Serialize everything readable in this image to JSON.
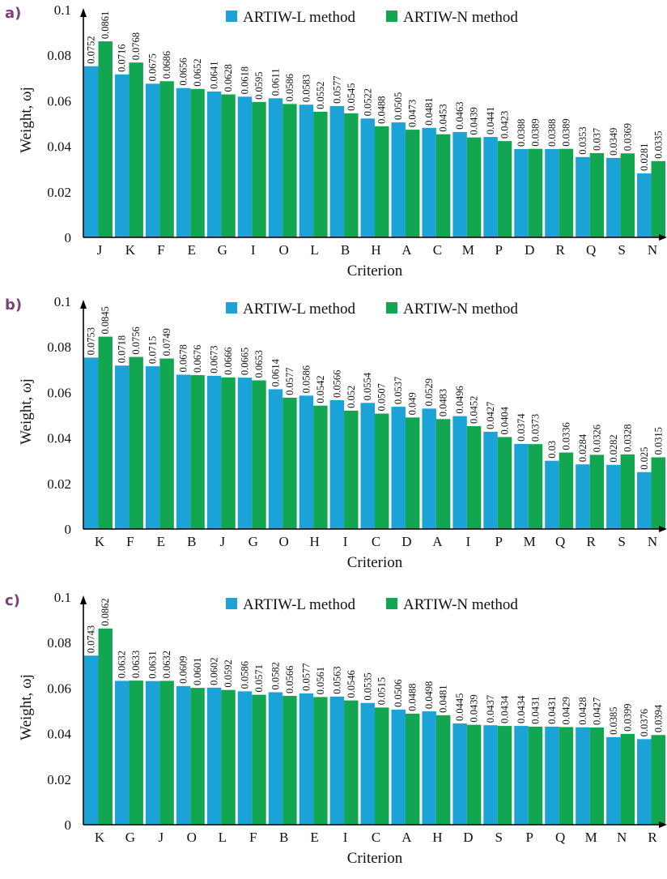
{
  "colors": {
    "series_l": "#1ba3d8",
    "series_n": "#12a650",
    "axis": "#000000",
    "panel_label": "#7b3f7a"
  },
  "chart_data": [
    {
      "type": "bar",
      "panel_label": "a)",
      "ylabel": "Weight, ωj",
      "xlabel": "Criterion",
      "ylim": [
        0,
        0.1
      ],
      "yticks": [
        "0",
        "0.02",
        "0.04",
        "0.06",
        "0.08",
        "0.1"
      ],
      "legend_position": "top-center",
      "categories": [
        "J",
        "K",
        "F",
        "E",
        "G",
        "I",
        "O",
        "L",
        "B",
        "H",
        "A",
        "C",
        "M",
        "P",
        "D",
        "R",
        "Q",
        "S",
        "N"
      ],
      "series": [
        {
          "name": "ARTIW-L method",
          "values": [
            0.0752,
            0.0716,
            0.0675,
            0.0656,
            0.0641,
            0.0618,
            0.0611,
            0.0583,
            0.0577,
            0.0522,
            0.0505,
            0.0481,
            0.0463,
            0.0441,
            0.0388,
            0.0388,
            0.0353,
            0.0349,
            0.0281
          ],
          "labels": [
            "0.0752",
            "0.0716",
            "0.0675",
            "0.0656",
            "0.0641",
            "0.0618",
            "0.0611",
            "0.0583",
            "0.0577",
            "0.0522",
            "0.0505",
            "0.0481",
            "0.0463",
            "0.0441",
            "0.0388",
            "0.0388",
            "0.0353",
            "0.0349",
            "0.0281"
          ]
        },
        {
          "name": "ARTIW-N method",
          "values": [
            0.0861,
            0.0768,
            0.0686,
            0.0652,
            0.0628,
            0.0595,
            0.0586,
            0.0552,
            0.0545,
            0.0488,
            0.0473,
            0.0453,
            0.0439,
            0.0423,
            0.0389,
            0.0389,
            0.037,
            0.0369,
            0.0335
          ],
          "labels": [
            "0.0861",
            "0.0768",
            "0.0686",
            "0.0652",
            "0.0628",
            "0.0595",
            "0.0586",
            "0.0552",
            "0.0545",
            "0.0488",
            "0.0473",
            "0.0453",
            "0.0439",
            "0.0423",
            "0.0389",
            "0.0389",
            "0.037",
            "0.0369",
            "0.0335"
          ]
        }
      ]
    },
    {
      "type": "bar",
      "panel_label": "b)",
      "ylabel": "Weight, ωj",
      "xlabel": "Criterion",
      "ylim": [
        0,
        0.1
      ],
      "yticks": [
        "0",
        "0.02",
        "0.04",
        "0.06",
        "0.08",
        "0.1"
      ],
      "legend_position": "top-center",
      "categories": [
        "K",
        "F",
        "E",
        "B",
        "J",
        "G",
        "O",
        "H",
        "I",
        "C",
        "D",
        "A",
        "I",
        "P",
        "M",
        "Q",
        "R",
        "S",
        "N"
      ],
      "series": [
        {
          "name": "ARTIW-L method",
          "values": [
            0.0753,
            0.0718,
            0.0715,
            0.0678,
            0.0673,
            0.0665,
            0.0614,
            0.0586,
            0.0566,
            0.0554,
            0.0537,
            0.0529,
            0.0496,
            0.0427,
            0.0374,
            0.03,
            0.0284,
            0.0282,
            0.025
          ],
          "labels": [
            "0.0753",
            "0.0718",
            "0.0715",
            "0.0678",
            "0.0673",
            "0.0665",
            "0.0614",
            "0.0586",
            "0.0566",
            "0.0554",
            "0.0537",
            "0.0529",
            "0.0496",
            "0.0427",
            "0.0374",
            "0.03",
            "0.0284",
            "0.0282",
            "0.025"
          ]
        },
        {
          "name": "ARTIW-N method",
          "values": [
            0.0845,
            0.0756,
            0.0749,
            0.0676,
            0.0666,
            0.0653,
            0.0577,
            0.0542,
            0.052,
            0.0507,
            0.049,
            0.0483,
            0.0452,
            0.0404,
            0.0373,
            0.0336,
            0.0326,
            0.0328,
            0.0315
          ],
          "labels": [
            "0.0845",
            "0.0756",
            "0.0749",
            "0.0676",
            "0.0666",
            "0.0653",
            "0.0577",
            "0.0542",
            "0.052",
            "0.0507",
            "0.049",
            "0.0483",
            "0.0452",
            "0.0404",
            "0.0373",
            "0.0336",
            "0.0326",
            "0.0328",
            "0.0315"
          ]
        }
      ]
    },
    {
      "type": "bar",
      "panel_label": "c)",
      "ylabel": "Weight, ωj",
      "xlabel": "Criterion",
      "ylim": [
        0,
        0.1
      ],
      "yticks": [
        "0",
        "0.02",
        "0.04",
        "0.06",
        "0.08",
        "0.1"
      ],
      "legend_position": "top-center",
      "categories": [
        "K",
        "G",
        "J",
        "O",
        "L",
        "F",
        "B",
        "E",
        "I",
        "C",
        "A",
        "H",
        "D",
        "S",
        "P",
        "Q",
        "M",
        "N",
        "R"
      ],
      "series": [
        {
          "name": "ARTIW-L method",
          "values": [
            0.0743,
            0.0632,
            0.0631,
            0.0609,
            0.0602,
            0.0586,
            0.0582,
            0.0577,
            0.0563,
            0.0535,
            0.0506,
            0.0498,
            0.0445,
            0.0437,
            0.0434,
            0.0431,
            0.0428,
            0.0385,
            0.0376
          ],
          "labels": [
            "0.0743",
            "0.0632",
            "0.0631",
            "0.0609",
            "0.0602",
            "0.0586",
            "0.0582",
            "0.0577",
            "0.0563",
            "0.0535",
            "0.0506",
            "0.0498",
            "0.0445",
            "0.0437",
            "0.0434",
            "0.0431",
            "0.0428",
            "0.0385",
            "0.0376"
          ]
        },
        {
          "name": "ARTIW-N method",
          "values": [
            0.0862,
            0.0633,
            0.0632,
            0.0601,
            0.0592,
            0.0571,
            0.0566,
            0.0561,
            0.0546,
            0.0515,
            0.0488,
            0.0481,
            0.0439,
            0.0434,
            0.0431,
            0.0429,
            0.0427,
            0.0399,
            0.0394
          ],
          "labels": [
            "0.0862",
            "0.0633",
            "0.0632",
            "0.0601",
            "0.0592",
            "0.0571",
            "0.0566",
            "0.0561",
            "0.0546",
            "0.0515",
            "0.0488",
            "0.0481",
            "0.0439",
            "0.0434",
            "0.0431",
            "0.0429",
            "0.0427",
            "0.0399",
            "0.0394"
          ]
        }
      ]
    }
  ]
}
